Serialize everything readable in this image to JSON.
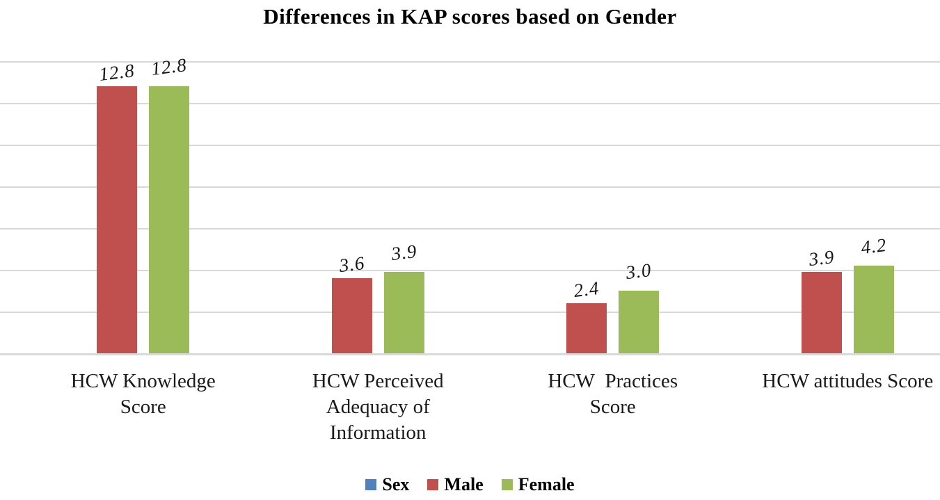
{
  "title": "Differences in KAP scores based on Gender",
  "chart_data": {
    "type": "bar",
    "categories": [
      "HCW Knowledge\nScore",
      "HCW Perceived\nAdequacy of\nInformation",
      "HCW  Practices\nScore",
      "HCW attitudes Score"
    ],
    "series": [
      {
        "name": "Sex",
        "color": "#4f81bd",
        "values": [],
        "labels": []
      },
      {
        "name": "Male",
        "color": "#c0504d",
        "values": [
          12.8,
          3.6,
          2.4,
          3.9
        ],
        "labels": [
          "12.8",
          "3.6",
          "2.4",
          "3.9"
        ]
      },
      {
        "name": "Female",
        "color": "#9bbb59",
        "values": [
          12.8,
          3.9,
          3.0,
          4.2
        ],
        "labels": [
          "12.8",
          "3.9",
          "3.0",
          "4.2"
        ]
      }
    ],
    "title": "Differences in KAP scores based on Gender",
    "xlabel": "",
    "ylabel": "",
    "ylim": [
      0,
      14
    ],
    "gridline_step": 2,
    "grid": true,
    "yticks_visible": false,
    "legend_position": "bottom",
    "data_labels_visible": true
  },
  "legend": {
    "items": [
      {
        "label": "Sex",
        "color": "#4f81bd"
      },
      {
        "label": "Male",
        "color": "#c0504d"
      },
      {
        "label": "Female",
        "color": "#9bbb59"
      }
    ]
  },
  "colors": {
    "gridline": "#d9d9d9",
    "male": "#c0504d",
    "female": "#9bbb59",
    "sex": "#4f81bd",
    "text": "#1a1a1a"
  }
}
